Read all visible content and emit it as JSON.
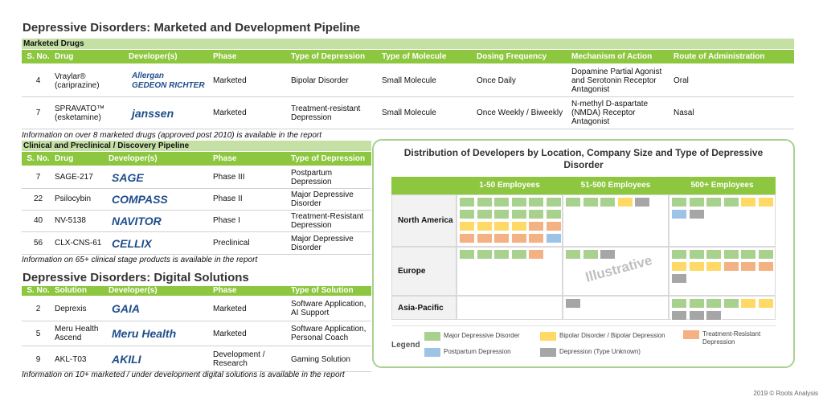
{
  "title": "Depressive Disorders: Marketed and Development Pipeline",
  "marketed": {
    "section": "Marketed Drugs",
    "columns": [
      "S. No.",
      "Drug",
      "Developer(s)",
      "Phase",
      "Type of Depression",
      "Type of Molecule",
      "Dosing Frequency",
      "Mechanism of Action",
      "Route of Administration"
    ],
    "rows": [
      [
        4,
        "Vraylar® (cariprazine)",
        [
          "Allergan",
          "GEDEON RICHTER"
        ],
        "Marketed",
        "Bipolar Disorder",
        "Small Molecule",
        "Once Daily",
        "Dopamine Partial Agonist and Serotonin Receptor Antagonist",
        "Oral"
      ],
      [
        7,
        "SPRAVATO™ (esketamine)",
        [
          "janssen"
        ],
        "Marketed",
        "Treatment-resistant Depression",
        "Small Molecule",
        "Once Weekly / Biweekly",
        "N-methyl D-aspartate (NMDA) Receptor Antagonist",
        "Nasal"
      ]
    ],
    "note": "Information on over 8 marketed drugs (approved post 2010) is available in the report"
  },
  "clinical": {
    "section": "Clinical and Preclinical / Discovery Pipeline",
    "columns": [
      "S. No.",
      "Drug",
      "Developer(s)",
      "Phase",
      "Type of Depression"
    ],
    "rows": [
      [
        7,
        "SAGE-217",
        [
          "SAGE"
        ],
        "Phase III",
        "Postpartum Depression"
      ],
      [
        22,
        "Psilocybin",
        [
          "COMPASS"
        ],
        "Phase II",
        "Major Depressive Disorder"
      ],
      [
        40,
        "NV-5138",
        [
          "NAVITOR"
        ],
        "Phase I",
        "Treatment-Resistant Depression"
      ],
      [
        56,
        "CLX-CNS-61",
        [
          "CELLIX"
        ],
        "Preclinical",
        "Major Depressive Disorder"
      ]
    ],
    "note": "Information on 65+ clinical stage products is available in the report"
  },
  "digital": {
    "title": "Depressive Disorders: Digital Solutions",
    "columns": [
      "S. No.",
      "Solution",
      "Developer(s)",
      "Phase",
      "Type of Solution"
    ],
    "rows": [
      [
        2,
        "Deprexis",
        [
          "GAIA"
        ],
        "Marketed",
        "Software Application, AI Support"
      ],
      [
        5,
        "Meru Health Ascend",
        [
          "Meru Health"
        ],
        "Marketed",
        "Software Application, Personal Coach"
      ],
      [
        9,
        "AKL-T03",
        [
          "AKILI"
        ],
        "Development / Research",
        "Gaming Solution"
      ]
    ],
    "note": "Information on 10+ marketed / under development digital solutions is available in the report"
  },
  "panel": {
    "title": "Distribution of Developers by Location, Company Size and Type of Depressive Disorder",
    "columns": [
      "1-50 Employees",
      "51-500 Employees",
      "500+ Employees"
    ],
    "rows": [
      {
        "label": "North America",
        "cells": [
          [
            12,
            4,
            7,
            1,
            0
          ],
          [
            3,
            1,
            0,
            0,
            1
          ],
          [
            4,
            2,
            0,
            1,
            1
          ]
        ]
      },
      {
        "label": "Europe",
        "cells": [
          [
            4,
            0,
            1,
            0,
            0
          ],
          [
            2,
            0,
            0,
            0,
            1
          ],
          [
            6,
            3,
            3,
            0,
            1
          ]
        ]
      },
      {
        "label": "Asia-Pacific",
        "cells": [
          [
            0,
            0,
            0,
            0,
            0
          ],
          [
            0,
            0,
            0,
            0,
            1
          ],
          [
            4,
            2,
            0,
            0,
            3
          ]
        ]
      }
    ],
    "watermark": "Illustrative",
    "legend_title": "Legend",
    "categories": [
      {
        "name": "Major Depressive Disorder",
        "color": "#a9d18e"
      },
      {
        "name": "Bipolar Disorder / Bipolar Depression",
        "color": "#ffd966"
      },
      {
        "name": "Treatment-Resistant Depression",
        "color": "#f4b183"
      },
      {
        "name": "Postpartum Depression",
        "color": "#9dc3e6"
      },
      {
        "name": "Depression (Type Unknown)",
        "color": "#a6a6a6"
      }
    ]
  },
  "footer": "2019 © Roots Analysis"
}
